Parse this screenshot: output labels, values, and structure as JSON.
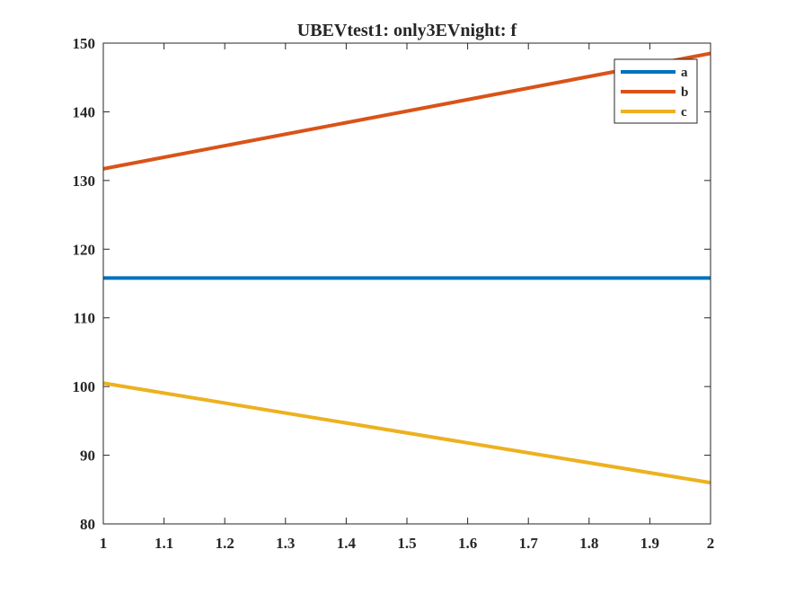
{
  "chart_data": {
    "type": "line",
    "title": "UBEVtest1: only3EVnight: f",
    "xlabel": "",
    "ylabel": "",
    "xlim": [
      1,
      2
    ],
    "ylim": [
      80,
      150
    ],
    "xticks": [
      "1",
      "1.1",
      "1.2",
      "1.3",
      "1.4",
      "1.5",
      "1.6",
      "1.7",
      "1.8",
      "1.9",
      "2"
    ],
    "yticks": [
      "80",
      "90",
      "100",
      "110",
      "120",
      "130",
      "140",
      "150"
    ],
    "grid": false,
    "legend_position": "top-right",
    "x": [
      1,
      2
    ],
    "series": [
      {
        "name": "a",
        "color": "#0072BD",
        "values": [
          115.8,
          115.8
        ]
      },
      {
        "name": "b",
        "color": "#D95319",
        "values": [
          131.7,
          148.5
        ]
      },
      {
        "name": "c",
        "color": "#EDB120",
        "values": [
          100.5,
          86.0
        ]
      }
    ]
  }
}
